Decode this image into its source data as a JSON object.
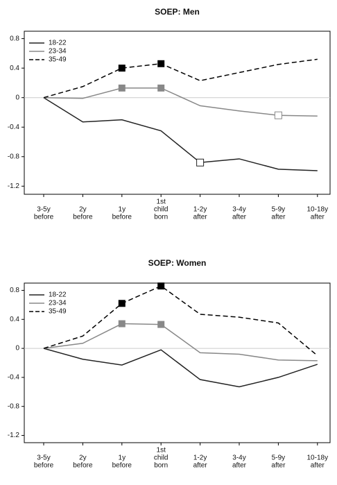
{
  "chart_data": [
    {
      "type": "line",
      "title": "SOEP: Men",
      "categories": [
        [
          "3-5y",
          "before"
        ],
        [
          "2y",
          "before"
        ],
        [
          "1y",
          "before"
        ],
        [
          "1st",
          "child",
          "born"
        ],
        [
          "1-2y",
          "after"
        ],
        [
          "3-4y",
          "after"
        ],
        [
          "5-9y",
          "after"
        ],
        [
          "10-18y",
          "after"
        ]
      ],
      "ylim": [
        -1.31,
        0.9
      ],
      "yticks": [
        0.8,
        0.4,
        0,
        -0.4,
        -0.8,
        -1.2
      ],
      "hline": 0,
      "legend": "top-left",
      "series": [
        {
          "name": "18-22",
          "color": "#222222",
          "dash": false,
          "values": [
            0,
            -0.33,
            -0.3,
            -0.45,
            -0.88,
            -0.83,
            -0.97,
            -0.99
          ],
          "filled_markers": [],
          "open_markers": [
            4
          ]
        },
        {
          "name": "23-34",
          "color": "#888888",
          "dash": false,
          "values": [
            0,
            -0.01,
            0.13,
            0.13,
            -0.11,
            -0.18,
            -0.24,
            -0.25
          ],
          "filled_markers": [
            2,
            3
          ],
          "open_markers": [
            6
          ]
        },
        {
          "name": "35-49",
          "color": "#000000",
          "dash": true,
          "values": [
            0,
            0.15,
            0.4,
            0.46,
            0.23,
            0.34,
            0.45,
            0.52
          ],
          "filled_markers": [
            2,
            3
          ],
          "open_markers": []
        }
      ]
    },
    {
      "type": "line",
      "title": "SOEP: Women",
      "categories": [
        [
          "3-5y",
          "before"
        ],
        [
          "2y",
          "before"
        ],
        [
          "1y",
          "before"
        ],
        [
          "1st",
          "child",
          "born"
        ],
        [
          "1-2y",
          "after"
        ],
        [
          "3-4y",
          "after"
        ],
        [
          "5-9y",
          "after"
        ],
        [
          "10-18y",
          "after"
        ]
      ],
      "ylim": [
        -1.3,
        0.9
      ],
      "yticks": [
        0.8,
        0.4,
        0,
        -0.4,
        -0.8,
        -1.2
      ],
      "hline": 0,
      "legend": "top-left",
      "series": [
        {
          "name": "18-22",
          "color": "#222222",
          "dash": false,
          "values": [
            0,
            -0.15,
            -0.23,
            -0.02,
            -0.43,
            -0.53,
            -0.4,
            -0.22
          ],
          "filled_markers": [],
          "open_markers": []
        },
        {
          "name": "23-34",
          "color": "#888888",
          "dash": false,
          "values": [
            0,
            0.07,
            0.34,
            0.33,
            -0.06,
            -0.08,
            -0.16,
            -0.17
          ],
          "filled_markers": [
            2,
            3
          ],
          "open_markers": []
        },
        {
          "name": "35-49",
          "color": "#000000",
          "dash": true,
          "values": [
            0,
            0.17,
            0.62,
            0.86,
            0.47,
            0.43,
            0.35,
            -0.1
          ],
          "filled_markers": [
            2,
            3
          ],
          "open_markers": []
        }
      ]
    }
  ]
}
